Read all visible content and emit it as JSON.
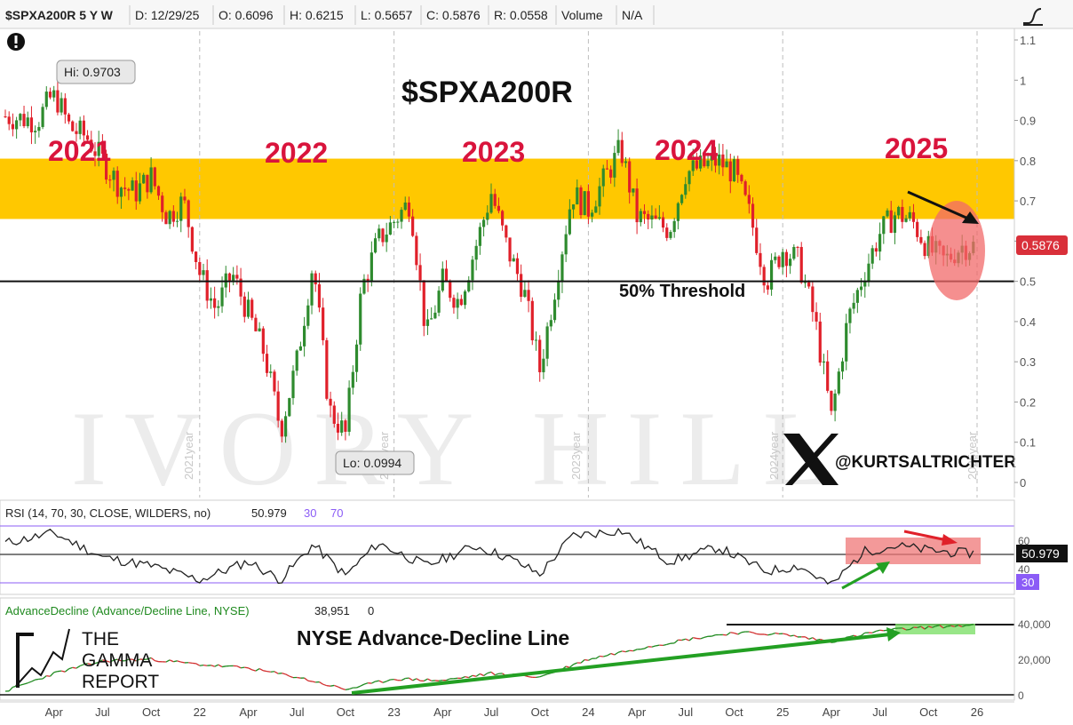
{
  "header": {
    "symbol": "$SPXA200R 5 Y W",
    "date": "D: 12/29/25",
    "open": "O: 0.6096",
    "high": "H: 0.6215",
    "low": "L: 0.5657",
    "close": "C: 0.5876",
    "range": "R: 0.0558",
    "volume_label": "Volume",
    "volume_value": "N/A"
  },
  "colors": {
    "up": "#2e8b2e",
    "down": "#e0202a",
    "band": "#ffc800",
    "year_text": "#d9143c",
    "rsi_line": "#222222",
    "rsi_level": "#8b5cf6",
    "ad_up": "#1f8a1f",
    "ad_down": "#d23030",
    "arrow_green": "#23a023"
  },
  "main": {
    "title": "$SPXA200R",
    "year_labels": [
      "2021",
      "2022",
      "2023",
      "2024",
      "2025"
    ],
    "watermark_years": [
      "2021year",
      "2022year",
      "2023year",
      "2024year",
      "2025year"
    ],
    "threshold_label": "50% Threshold",
    "hi_label": "Hi: 0.9703",
    "lo_label": "Lo: 0.0994",
    "last_value": "0.5876",
    "handle": "@KURTSALTRICHTER",
    "watermark": "IVORY HILL"
  },
  "rsi": {
    "label": "RSI (14, 70, 30, CLOSE, WILDERS, no)",
    "value": "50.979",
    "lvl30": "30",
    "lvl70": "70",
    "ticks": [
      "60",
      "40"
    ],
    "last_value": "50.979",
    "low_tag": "30"
  },
  "ad": {
    "label": "AdvanceDecline (Advance/Decline Line, NYSE)",
    "value": "38,951",
    "zero": "0",
    "title": "NYSE Advance-Decline Line",
    "ticks": [
      "40,000",
      "20,000",
      "0"
    ],
    "logo": [
      "THE",
      "GAMMA",
      "REPORT"
    ]
  },
  "x_axis": [
    "Apr",
    "Jul",
    "Oct",
    "22",
    "Apr",
    "Jul",
    "Oct",
    "23",
    "Apr",
    "Jul",
    "Oct",
    "24",
    "Apr",
    "Jul",
    "Oct",
    "25",
    "Apr",
    "Jul",
    "Oct",
    "26"
  ],
  "chart_data": {
    "type": "candlestick",
    "title": "$SPXA200R",
    "timeframe": "5 Y W",
    "ylim": [
      0,
      1.1
    ],
    "y_ticks": [
      0,
      0.1,
      0.2,
      0.3,
      0.4,
      0.5,
      0.6,
      0.7,
      0.8,
      0.9,
      1,
      1.1
    ],
    "y_tick_labels": [
      "0",
      "0.1",
      "0.2",
      "0.3",
      "0.4",
      "0.5",
      "0.6",
      "0.7",
      "0.8",
      "0.9",
      "1",
      "1.1"
    ],
    "threshold": 0.5,
    "highlight_band": [
      0.655,
      0.805
    ],
    "hi": 0.9703,
    "lo": 0.0994,
    "last": 0.5876,
    "x_start": "2021-01",
    "x_end": "2026-01",
    "approx_path": [
      [
        "2021-01",
        0.91
      ],
      [
        "2021-03",
        0.9
      ],
      [
        "2021-04",
        0.97
      ],
      [
        "2021-05",
        0.88
      ],
      [
        "2021-06",
        0.86
      ],
      [
        "2021-07",
        0.8
      ],
      [
        "2021-08",
        0.74
      ],
      [
        "2021-09",
        0.72
      ],
      [
        "2021-10",
        0.76
      ],
      [
        "2021-11",
        0.66
      ],
      [
        "2021-12",
        0.7
      ],
      [
        "2022-01",
        0.52
      ],
      [
        "2022-02",
        0.43
      ],
      [
        "2022-03",
        0.52
      ],
      [
        "2022-05",
        0.32
      ],
      [
        "2022-06",
        0.13
      ],
      [
        "2022-07",
        0.3
      ],
      [
        "2022-08",
        0.55
      ],
      [
        "2022-09",
        0.18
      ],
      [
        "2022-10",
        0.12
      ],
      [
        "2022-11",
        0.48
      ],
      [
        "2022-12",
        0.6
      ],
      [
        "2023-02",
        0.7
      ],
      [
        "2023-03",
        0.36
      ],
      [
        "2023-04",
        0.5
      ],
      [
        "2023-05",
        0.45
      ],
      [
        "2023-06",
        0.58
      ],
      [
        "2023-07",
        0.72
      ],
      [
        "2023-08",
        0.58
      ],
      [
        "2023-09",
        0.48
      ],
      [
        "2023-10",
        0.28
      ],
      [
        "2023-11",
        0.5
      ],
      [
        "2023-12",
        0.72
      ],
      [
        "2024-01",
        0.68
      ],
      [
        "2024-03",
        0.83
      ],
      [
        "2024-04",
        0.66
      ],
      [
        "2024-06",
        0.63
      ],
      [
        "2024-07",
        0.77
      ],
      [
        "2024-09",
        0.8
      ],
      [
        "2024-10",
        0.77
      ],
      [
        "2024-11",
        0.66
      ],
      [
        "2024-12",
        0.5
      ],
      [
        "2025-01",
        0.58
      ],
      [
        "2025-02",
        0.55
      ],
      [
        "2025-03",
        0.4
      ],
      [
        "2025-04",
        0.16
      ],
      [
        "2025-05",
        0.4
      ],
      [
        "2025-06",
        0.52
      ],
      [
        "2025-07",
        0.62
      ],
      [
        "2025-08",
        0.67
      ],
      [
        "2025-09",
        0.65
      ],
      [
        "2025-10",
        0.58
      ],
      [
        "2025-11",
        0.55
      ],
      [
        "2025-12",
        0.5876
      ]
    ],
    "rsi": {
      "ylim": [
        25,
        75
      ],
      "levels": [
        30,
        70
      ],
      "last": 50.979,
      "approx_path": [
        [
          "2021-01",
          58
        ],
        [
          "2021-04",
          65
        ],
        [
          "2021-07",
          48
        ],
        [
          "2021-10",
          42
        ],
        [
          "2022-01",
          32
        ],
        [
          "2022-04",
          45
        ],
        [
          "2022-06",
          32
        ],
        [
          "2022-08",
          57
        ],
        [
          "2022-10",
          35
        ],
        [
          "2022-12",
          58
        ],
        [
          "2023-03",
          42
        ],
        [
          "2023-06",
          56
        ],
        [
          "2023-08",
          48
        ],
        [
          "2023-10",
          36
        ],
        [
          "2023-12",
          63
        ],
        [
          "2024-03",
          67
        ],
        [
          "2024-06",
          45
        ],
        [
          "2024-09",
          55
        ],
        [
          "2024-12",
          38
        ],
        [
          "2025-02",
          42
        ],
        [
          "2025-04",
          28
        ],
        [
          "2025-06",
          52
        ],
        [
          "2025-08",
          56
        ],
        [
          "2025-10",
          53
        ],
        [
          "2025-12",
          50.979
        ]
      ]
    },
    "advance_decline": {
      "ylim": [
        0,
        45000
      ],
      "ticks": [
        0,
        20000,
        40000
      ],
      "last": 38951,
      "approx_path": [
        [
          "2021-01",
          2000
        ],
        [
          "2021-04",
          12000
        ],
        [
          "2021-07",
          19000
        ],
        [
          "2021-10",
          20000
        ],
        [
          "2022-01",
          17000
        ],
        [
          "2022-04",
          15000
        ],
        [
          "2022-07",
          10000
        ],
        [
          "2022-10",
          3000
        ],
        [
          "2023-01",
          9000
        ],
        [
          "2023-04",
          8000
        ],
        [
          "2023-07",
          12000
        ],
        [
          "2023-10",
          10000
        ],
        [
          "2024-01",
          20000
        ],
        [
          "2024-04",
          26000
        ],
        [
          "2024-07",
          31000
        ],
        [
          "2024-10",
          35000
        ],
        [
          "2025-01",
          34000
        ],
        [
          "2025-04",
          30000
        ],
        [
          "2025-07",
          36000
        ],
        [
          "2025-10",
          38000
        ],
        [
          "2025-12",
          38951
        ]
      ]
    }
  }
}
